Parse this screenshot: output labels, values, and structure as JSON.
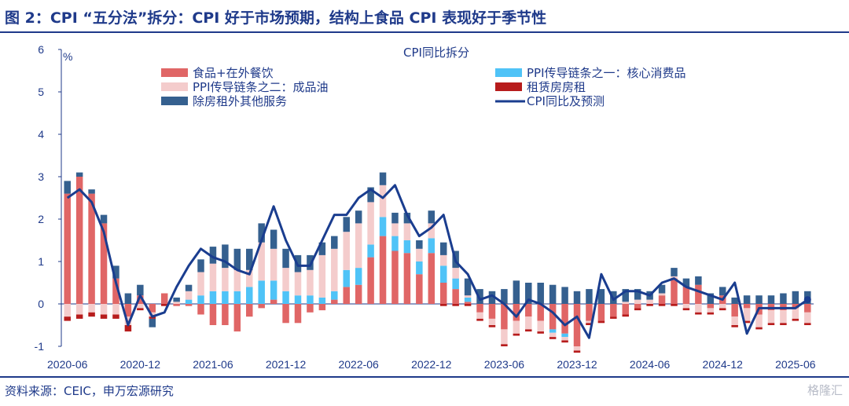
{
  "header": {
    "title": "图 2：CPI “五分法”拆分：CPI 好于市场预期，结构上食品 CPI 表现好于季节性"
  },
  "footer": {
    "source": "资料来源：CEIC，申万宏源研究",
    "watermark": "格隆汇"
  },
  "chart_data": {
    "type": "bar",
    "title": "CPI同比拆分",
    "ylabel": "%",
    "ylim": [
      -1,
      6
    ],
    "yticks": [
      -1,
      0,
      1,
      2,
      3,
      4,
      5,
      6
    ],
    "xtick_labels": [
      "2020-06",
      "2020-12",
      "2021-06",
      "2021-12",
      "2022-06",
      "2022-12",
      "2023-06",
      "2023-12",
      "2024-06",
      "2024-12",
      "2025-06"
    ],
    "categories": [
      "2020-06",
      "2020-07",
      "2020-08",
      "2020-09",
      "2020-10",
      "2020-11",
      "2020-12",
      "2021-01",
      "2021-02",
      "2021-03",
      "2021-04",
      "2021-05",
      "2021-06",
      "2021-07",
      "2021-08",
      "2021-09",
      "2021-10",
      "2021-11",
      "2021-12",
      "2022-01",
      "2022-02",
      "2022-03",
      "2022-04",
      "2022-05",
      "2022-06",
      "2022-07",
      "2022-08",
      "2022-09",
      "2022-10",
      "2022-11",
      "2022-12",
      "2023-01",
      "2023-02",
      "2023-03",
      "2023-04",
      "2023-05",
      "2023-06",
      "2023-07",
      "2023-08",
      "2023-09",
      "2023-10",
      "2023-11",
      "2023-12",
      "2024-01",
      "2024-02",
      "2024-03",
      "2024-04",
      "2024-05",
      "2024-06",
      "2024-07",
      "2024-08",
      "2024-09",
      "2024-10",
      "2024-11",
      "2024-12",
      "2025-01",
      "2025-02",
      "2025-03",
      "2025-04",
      "2025-05",
      "2025-06",
      "2025-07"
    ],
    "stack_order": [
      "food",
      "core",
      "oil",
      "rent",
      "services"
    ],
    "series": [
      {
        "key": "food",
        "name": "食品+在外餐饮",
        "color": "#e06666",
        "values": [
          2.6,
          3.0,
          2.6,
          1.9,
          0.6,
          -0.3,
          0.2,
          -0.2,
          0.25,
          -0.05,
          -0.05,
          -0.25,
          -0.5,
          -0.5,
          -0.65,
          -0.3,
          -0.1,
          0.1,
          -0.45,
          -0.45,
          -0.2,
          -0.15,
          0.1,
          0.4,
          0.45,
          1.1,
          1.6,
          1.25,
          1.2,
          0.7,
          1.2,
          0.5,
          0.35,
          0.05,
          -0.2,
          -0.35,
          -0.6,
          -0.4,
          -0.3,
          -0.4,
          -0.6,
          -0.7,
          -1.0,
          -0.4,
          -0.4,
          -0.3,
          -0.25,
          -0.1,
          0.0,
          0.2,
          0.6,
          0.4,
          0.45,
          -0.1,
          0.2,
          -0.3,
          -0.1,
          -0.25,
          -0.15,
          -0.15,
          -0.1,
          -0.2
        ]
      },
      {
        "key": "core",
        "name": "PPI传导链条之一：核心消费品",
        "color": "#4fc3f7",
        "values": [
          0,
          0,
          0,
          0,
          0,
          0,
          0,
          0,
          0,
          0,
          0.1,
          0.2,
          0.3,
          0.3,
          0.3,
          0.4,
          0.55,
          0.45,
          0.3,
          0.2,
          0.2,
          0.15,
          0.2,
          0.4,
          0.4,
          0.3,
          0.45,
          0.35,
          0.3,
          0.3,
          0.35,
          0.4,
          0.25,
          0.1,
          0,
          0,
          0,
          0,
          0,
          0,
          -0.08,
          -0.08,
          0,
          0,
          0,
          0,
          0,
          0,
          0,
          0,
          0,
          0,
          0,
          0,
          0,
          0,
          0,
          0,
          0,
          0,
          0,
          0
        ]
      },
      {
        "key": "oil",
        "name": "PPI传导链条之二：成品油",
        "color": "#f4cccc",
        "values": [
          -0.3,
          -0.25,
          -0.2,
          -0.25,
          -0.25,
          -0.2,
          -0.1,
          -0.1,
          0.0,
          0.05,
          0.2,
          0.55,
          0.65,
          0.55,
          0.5,
          0.4,
          0.9,
          0.75,
          0.55,
          0.55,
          0.6,
          1.0,
          1.0,
          0.9,
          1.05,
          1.0,
          0.75,
          0.3,
          0.4,
          0.3,
          0.35,
          0.25,
          0.25,
          0.05,
          -0.15,
          -0.15,
          -0.35,
          -0.3,
          -0.3,
          -0.25,
          -0.1,
          -0.08,
          -0.1,
          -0.05,
          0.0,
          0.0,
          0.05,
          0.1,
          0.1,
          0.05,
          0.05,
          -0.1,
          -0.2,
          -0.1,
          -0.1,
          -0.2,
          -0.3,
          -0.3,
          -0.3,
          -0.3,
          -0.25,
          -0.25
        ]
      },
      {
        "key": "rent",
        "name": "租赁房房租",
        "color": "#b71c1c",
        "values": [
          -0.1,
          -0.1,
          -0.1,
          -0.1,
          -0.1,
          -0.15,
          -0.05,
          -0.05,
          -0.05,
          0,
          0,
          0,
          0,
          0,
          0,
          0,
          0,
          0,
          0,
          0,
          0,
          0,
          0,
          0,
          0,
          0,
          0,
          0,
          0,
          0,
          0,
          -0.05,
          -0.05,
          -0.05,
          -0.05,
          -0.05,
          -0.05,
          -0.05,
          -0.05,
          -0.05,
          -0.05,
          -0.05,
          -0.05,
          -0.05,
          -0.05,
          -0.05,
          -0.05,
          -0.05,
          -0.05,
          -0.05,
          -0.05,
          -0.05,
          -0.05,
          -0.05,
          -0.05,
          -0.05,
          -0.05,
          -0.05,
          -0.05,
          -0.05,
          -0.05,
          -0.05
        ]
      },
      {
        "key": "services",
        "name": "除房租外其他服务",
        "color": "#35608f",
        "values": [
          0.3,
          0.1,
          0.1,
          0.2,
          0.3,
          0.25,
          0.25,
          -0.2,
          0.0,
          0.1,
          0.15,
          0.3,
          0.4,
          0.55,
          0.5,
          0.5,
          0.45,
          0.45,
          0.45,
          0.4,
          0.35,
          0.3,
          0.3,
          0.35,
          0.3,
          0.35,
          0.3,
          0.25,
          0.25,
          0.2,
          0.3,
          0.3,
          0.4,
          0.4,
          0.35,
          0.3,
          0.35,
          0.55,
          0.5,
          0.5,
          0.45,
          0.4,
          0.3,
          0.35,
          0.35,
          0.3,
          0.3,
          0.25,
          0.2,
          0.2,
          0.2,
          0.2,
          0.2,
          0.25,
          0.2,
          0.15,
          0.2,
          0.2,
          0.2,
          0.25,
          0.3,
          0.3
        ]
      },
      {
        "key": "cpi",
        "name": "CPI同比及预测",
        "color": "#1a3d8f",
        "kind": "line",
        "values": [
          2.5,
          2.7,
          2.4,
          1.7,
          0.5,
          -0.5,
          0.2,
          -0.3,
          -0.2,
          0.4,
          0.9,
          1.3,
          1.1,
          1.0,
          0.8,
          0.7,
          1.5,
          2.3,
          1.5,
          0.9,
          0.9,
          1.5,
          2.1,
          2.1,
          2.5,
          2.7,
          2.5,
          2.8,
          2.1,
          1.6,
          1.8,
          2.1,
          1.0,
          0.7,
          0.1,
          0.2,
          0.0,
          -0.3,
          0.1,
          0.0,
          -0.2,
          -0.5,
          -0.3,
          -0.8,
          0.7,
          0.1,
          0.3,
          0.3,
          0.2,
          0.5,
          0.6,
          0.4,
          0.3,
          0.2,
          0.1,
          0.5,
          -0.7,
          -0.1,
          -0.1,
          -0.1,
          -0.1,
          0.1
        ]
      }
    ],
    "legend_placement": "top (two columns)",
    "grid": false
  }
}
